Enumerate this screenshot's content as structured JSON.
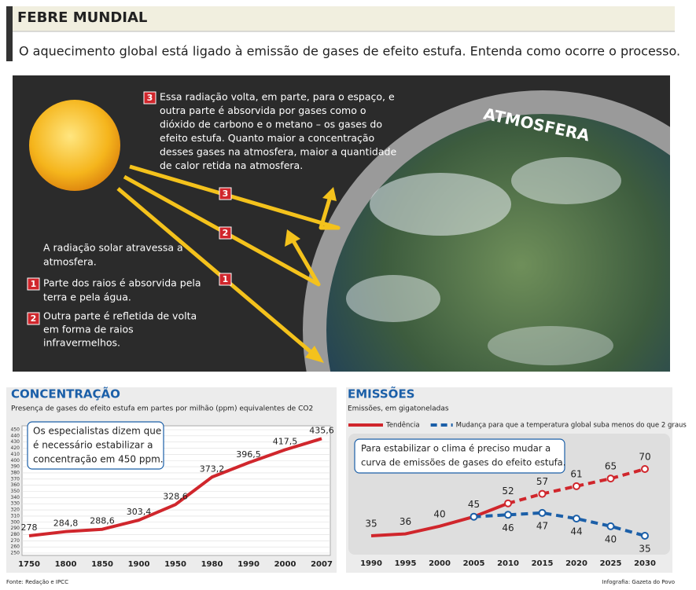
{
  "header": {
    "title": "FEBRE MUNDIAL",
    "subtitle": "O aquecimento global está ligado à emissão de gases de efeito estufa. Entenda como ocorre o processo."
  },
  "diagram": {
    "atmosphere_label": "ATMOSFERA",
    "step3": {
      "number": "3",
      "lines": [
        "Essa radiação volta, em parte, para o espaço, e",
        "outra parte é absorvida por gases como o",
        "dióxido de carbono e o metano – os gases do",
        "efeito estufa. Quanto maior a concentração",
        "desses gases na atmosfera, maior a quantidade",
        "de calor retida na atmosfera."
      ]
    },
    "intro": [
      "A radiação solar atravessa a",
      "atmosfera."
    ],
    "step1": {
      "number": "1",
      "lines": [
        "Parte dos raios é absorvida pela",
        "terra e pela água."
      ]
    },
    "step2": {
      "number": "2",
      "lines": [
        "Outra parte é refletida de volta",
        "em forma de raios",
        "infravermelhos."
      ]
    }
  },
  "chart_data": [
    {
      "type": "line",
      "title": "CONCENTRAÇÃO",
      "subtitle": "Presença de gases do efeito estufa em partes por milhão (ppm) equivalentes de CO2",
      "annotation": [
        "Os especialistas dizem que",
        "é necessário estabilizar a",
        "concentração em 450 ppm."
      ],
      "categories": [
        "1750",
        "1800",
        "1850",
        "1900",
        "1950",
        "1980",
        "1990",
        "2000",
        "2007"
      ],
      "values": [
        278,
        284.8,
        288.6,
        303.4,
        328.6,
        373.2,
        396.5,
        417.5,
        435.6
      ],
      "value_labels": [
        "278",
        "284,8",
        "288,6",
        "303,4",
        "328,6",
        "373,2",
        "396,5",
        "417,5",
        "435,6"
      ],
      "color": "#d0262c",
      "ylim": [
        250,
        450
      ],
      "yticks": [
        250,
        260,
        270,
        280,
        290,
        300,
        310,
        320,
        330,
        340,
        350,
        360,
        370,
        380,
        390,
        400,
        410,
        420,
        430,
        440,
        450
      ],
      "grid": true
    },
    {
      "type": "line",
      "title": "EMISSÕES",
      "subtitle": "Emissões, em gigatoneladas",
      "annotation": [
        "Para estabilizar o clima é preciso mudar a",
        "curva de emissões de gases do efeito estufa."
      ],
      "categories": [
        "1990",
        "1995",
        "2000",
        "2005",
        "2010",
        "2015",
        "2020",
        "2025",
        "2030"
      ],
      "series": [
        {
          "name": "Tendência",
          "color": "#d0262c",
          "line_style": "solid",
          "projection_from": "2010",
          "values": [
            35,
            36,
            40,
            45,
            52,
            57,
            61,
            65,
            70
          ]
        },
        {
          "name": "Mudança para que a temperatura global suba menos do que 2 graus",
          "color": "#1b5fa8",
          "line_style": "dashed",
          "values": [
            null,
            null,
            null,
            45,
            46,
            47,
            44,
            40,
            35
          ]
        }
      ]
    }
  ],
  "footer": {
    "source": "Fonte: Redação e IPCC",
    "credit": "Infografia: Gazeta do Povo"
  }
}
